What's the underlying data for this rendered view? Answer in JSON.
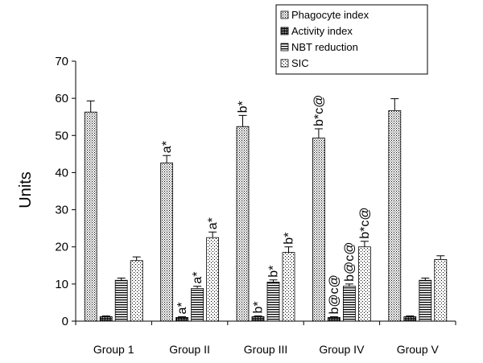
{
  "chart_data": {
    "type": "bar",
    "ylabel": "Units",
    "ylim": [
      0,
      70
    ],
    "yticks": [
      0,
      10,
      20,
      30,
      40,
      50,
      60,
      70
    ],
    "grid": false,
    "legend_position": "top-right",
    "categories": [
      "Group 1",
      "Group II",
      "Group III",
      "Group IV",
      "Group V"
    ],
    "series": [
      {
        "name": "Phagocyte index",
        "values": [
          56.3,
          42.6,
          52.4,
          49.3,
          56.7
        ],
        "errors": [
          3.0,
          2.0,
          3.0,
          2.5,
          3.2
        ]
      },
      {
        "name": "Activity index",
        "values": [
          1.2,
          1.0,
          1.2,
          1.0,
          1.2
        ],
        "errors": [
          0.2,
          0.2,
          0.2,
          0.2,
          0.2
        ]
      },
      {
        "name": "NBT reduction",
        "values": [
          11.0,
          8.8,
          10.5,
          9.4,
          11.0
        ],
        "errors": [
          0.6,
          0.6,
          0.6,
          0.6,
          0.6
        ]
      },
      {
        "name": "SIC",
        "values": [
          16.3,
          22.5,
          18.5,
          20.0,
          16.6
        ],
        "errors": [
          1.0,
          1.5,
          1.5,
          1.5,
          1.0
        ]
      }
    ],
    "annotations": [
      {
        "group": 1,
        "series": 0,
        "text": "a*"
      },
      {
        "group": 1,
        "series": 1,
        "text": "a*"
      },
      {
        "group": 1,
        "series": 2,
        "text": "a*"
      },
      {
        "group": 1,
        "series": 3,
        "text": "a*"
      },
      {
        "group": 2,
        "series": 0,
        "text": "b*"
      },
      {
        "group": 2,
        "series": 1,
        "text": "b*"
      },
      {
        "group": 2,
        "series": 2,
        "text": "b*"
      },
      {
        "group": 2,
        "series": 3,
        "text": "b*"
      },
      {
        "group": 3,
        "series": 0,
        "text": "b*c@"
      },
      {
        "group": 3,
        "series": 1,
        "text": "b@c@"
      },
      {
        "group": 3,
        "series": 2,
        "text": "b@c@"
      },
      {
        "group": 3,
        "series": 3,
        "text": "b*c@"
      }
    ],
    "colors": {
      "bar_fill": "#ffffff",
      "pattern": "#000000",
      "axis": "#000000"
    }
  }
}
